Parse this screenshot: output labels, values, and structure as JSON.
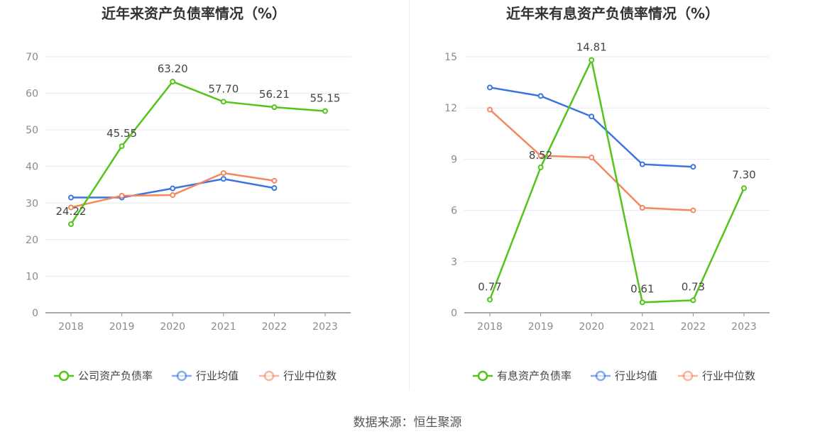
{
  "source": "数据来源：恒生聚源",
  "chart_data": [
    {
      "type": "line",
      "title": "近年来资产负债率情况（%）",
      "categories": [
        "2018",
        "2019",
        "2020",
        "2021",
        "2022",
        "2023"
      ],
      "ylim": [
        0,
        70
      ],
      "yticks": [
        0,
        10,
        20,
        30,
        40,
        50,
        60,
        70
      ],
      "grid": true,
      "legend_position": "bottom",
      "series": [
        {
          "name": "公司资产负债率",
          "color": "#52c41a",
          "values": [
            24.22,
            45.55,
            63.2,
            57.7,
            56.21,
            55.15
          ],
          "labels": [
            "24.22",
            "45.55",
            "63.20",
            "57.70",
            "56.21",
            "55.15"
          ]
        },
        {
          "name": "行业均值",
          "color": "#3b74e0",
          "values": [
            31.5,
            31.5,
            34.0,
            36.6,
            34.1,
            null
          ]
        },
        {
          "name": "行业中位数",
          "color": "#f4875e",
          "values": [
            28.8,
            32.0,
            32.2,
            38.2,
            36.1,
            null
          ]
        }
      ]
    },
    {
      "type": "line",
      "title": "近年来有息资产负债率情况（%）",
      "categories": [
        "2018",
        "2019",
        "2020",
        "2021",
        "2022",
        "2023"
      ],
      "ylim": [
        0,
        15
      ],
      "yticks": [
        0,
        3,
        6,
        9,
        12,
        15
      ],
      "grid": true,
      "legend_position": "bottom",
      "series": [
        {
          "name": "有息资产负债率",
          "color": "#52c41a",
          "values": [
            0.77,
            8.52,
            14.81,
            0.61,
            0.73,
            7.3
          ],
          "labels": [
            "0.77",
            "8.52",
            "14.81",
            "0.61",
            "0.73",
            "7.30"
          ]
        },
        {
          "name": "行业均值",
          "color": "#3b74e0",
          "values": [
            13.2,
            12.7,
            11.5,
            8.7,
            8.55,
            null
          ]
        },
        {
          "name": "行业中位数",
          "color": "#f4875e",
          "values": [
            11.9,
            9.2,
            9.1,
            6.15,
            6.0,
            null
          ]
        }
      ]
    }
  ]
}
